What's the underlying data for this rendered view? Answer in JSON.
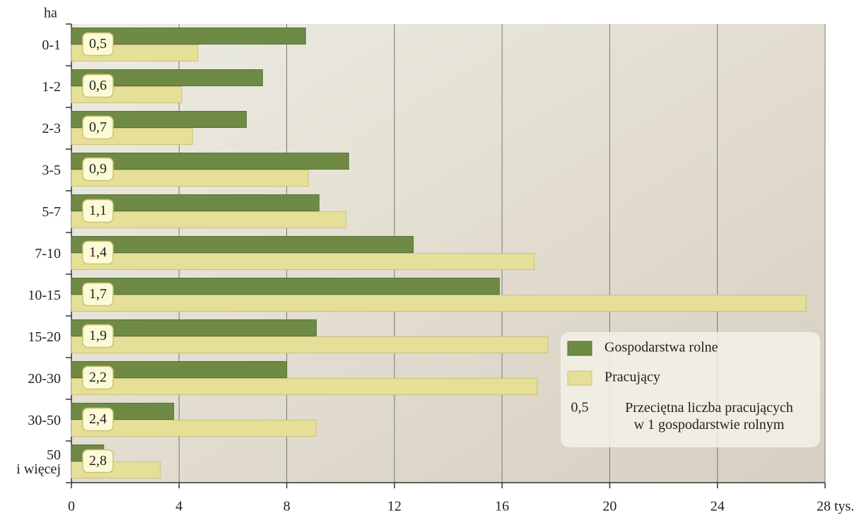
{
  "chart_data": {
    "type": "hbar",
    "y_label": "ha",
    "categories": [
      "0-1",
      "1-2",
      "2-3",
      "3-5",
      "5-7",
      "7-10",
      "10-15",
      "15-20",
      "20-30",
      "30-50",
      "50\ni więcej"
    ],
    "series": [
      {
        "name": "Gospodarstwa rolne",
        "color": "#6f8a45",
        "values": [
          8.7,
          7.1,
          6.5,
          10.3,
          9.2,
          12.7,
          15.9,
          9.1,
          8.0,
          3.8,
          1.2
        ]
      },
      {
        "name": "Pracujący",
        "color": "#e6df98",
        "values": [
          4.7,
          4.1,
          4.5,
          8.8,
          10.2,
          17.2,
          27.3,
          17.7,
          17.3,
          9.1,
          3.3
        ]
      },
      {
        "name": "Przeciętna liczba pracujących\nw 1 gospodarstwie rolnym",
        "color": "#fdfbd6",
        "values": [
          0.5,
          0.6,
          0.7,
          0.9,
          1.1,
          1.4,
          1.7,
          1.9,
          2.2,
          2.4,
          2.8
        ],
        "value_labels": [
          "0,5",
          "0,6",
          "0,7",
          "0,9",
          "1,1",
          "1,4",
          "1,7",
          "1,9",
          "2,2",
          "2,4",
          "2,8"
        ]
      }
    ],
    "xlim": [
      0,
      28
    ],
    "xticks": [
      0,
      4,
      8,
      12,
      16,
      20,
      24,
      {
        "value": 28,
        "label": "28 tys."
      }
    ],
    "grid": true
  }
}
